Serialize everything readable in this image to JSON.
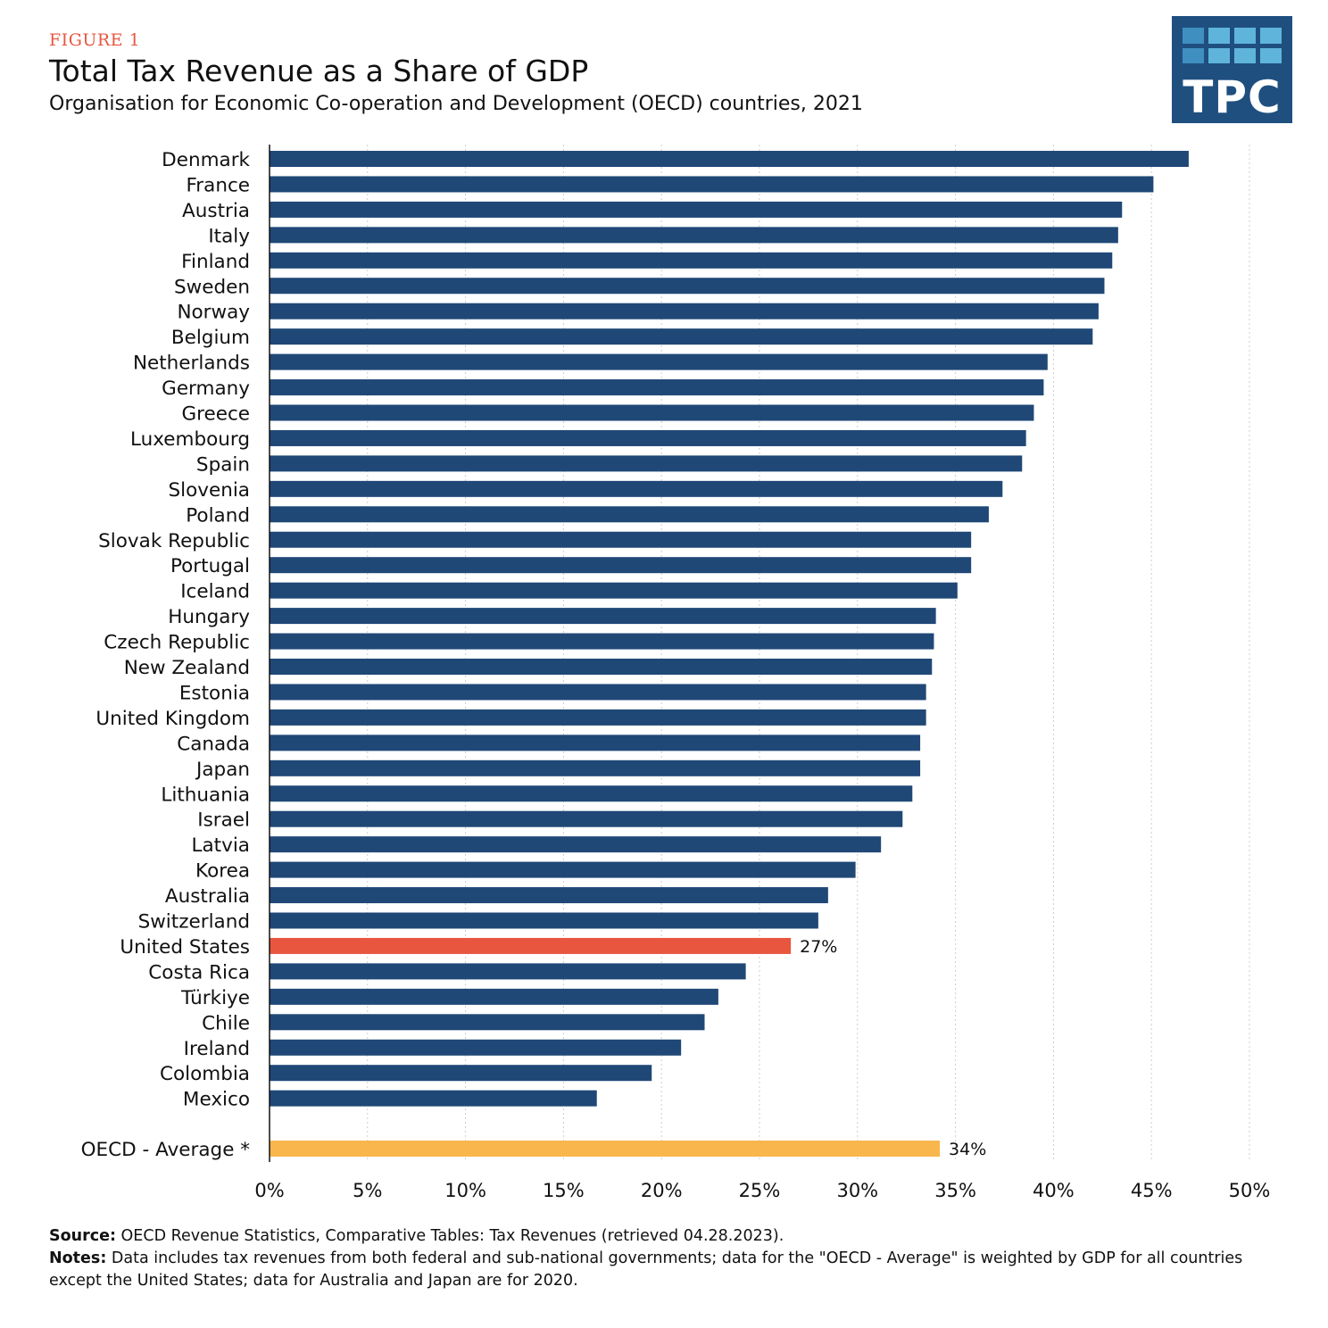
{
  "figure_label": "FIGURE 1",
  "title": "Total Tax Revenue as a Share of GDP",
  "subtitle": "Organisation for Economic Co-operation and Development (OECD) countries, 2021",
  "logo_text": "TPC",
  "source_label": "Source:",
  "source_text": " OECD Revenue Statistics, Comparative Tables: Tax Revenues (retrieved 04.28.2023).",
  "notes_label": "Notes:",
  "notes_text": " Data includes tax revenues from both federal and sub-national governments; data for the \"OECD - Average\" is weighted by GDP for all countries except the United States; data for Australia and Japan are for 2020.",
  "colors": {
    "bar": "#1f4877",
    "highlight": "#e8563f",
    "average": "#f8b64c",
    "accent_label": "#e8563f",
    "logo_bg": "#1f4f7f"
  },
  "chart_data": {
    "type": "bar",
    "orientation": "horizontal",
    "title": "Total Tax Revenue as a Share of GDP",
    "subtitle": "Organisation for Economic Co-operation and Development (OECD) countries, 2021",
    "xlim": [
      0,
      50
    ],
    "xticks": [
      "0%",
      "5%",
      "10%",
      "15%",
      "20%",
      "25%",
      "30%",
      "35%",
      "40%",
      "45%",
      "50%"
    ],
    "grid": "vertical dotted",
    "categories": [
      "Denmark",
      "France",
      "Austria",
      "Italy",
      "Finland",
      "Sweden",
      "Norway",
      "Belgium",
      "Netherlands",
      "Germany",
      "Greece",
      "Luxembourg",
      "Spain",
      "Slovenia",
      "Poland",
      "Slovak Republic",
      "Portugal",
      "Iceland",
      "Hungary",
      "Czech Republic",
      "New Zealand",
      "Estonia",
      "United Kingdom",
      "Canada",
      "Japan",
      "Lithuania",
      "Israel",
      "Latvia",
      "Korea",
      "Australia",
      "Switzerland",
      "United States",
      "Costa Rica",
      "Türkiye",
      "Chile",
      "Ireland",
      "Colombia",
      "Mexico"
    ],
    "values": [
      46.9,
      45.1,
      43.5,
      43.3,
      43.0,
      42.6,
      42.3,
      42.0,
      39.7,
      39.5,
      39.0,
      38.6,
      38.4,
      37.4,
      36.7,
      35.8,
      35.8,
      35.1,
      34.0,
      33.9,
      33.8,
      33.5,
      33.5,
      33.2,
      33.2,
      32.8,
      32.3,
      31.2,
      29.9,
      28.5,
      28.0,
      26.6,
      24.3,
      22.9,
      22.2,
      21.0,
      19.5,
      16.7
    ],
    "highlight": {
      "category": "United States",
      "label": "27%"
    },
    "average": {
      "category": "OECD - Average *",
      "value": 34.2,
      "label": "34%"
    }
  }
}
